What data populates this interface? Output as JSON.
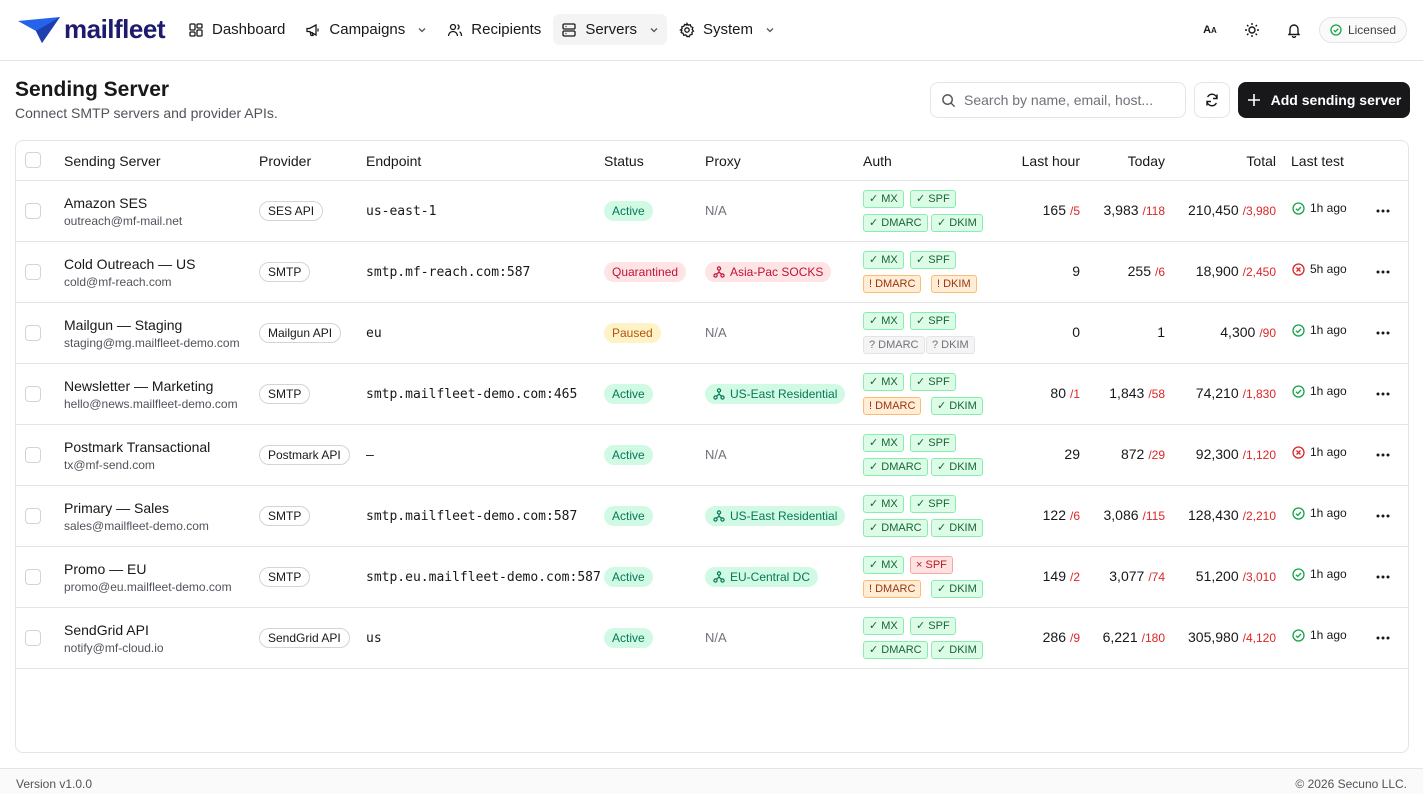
{
  "brand": {
    "name": "mailfleet"
  },
  "nav": {
    "items": [
      {
        "label": "Dashboard",
        "icon": "dashboard-icon",
        "dropdown": false,
        "active": false
      },
      {
        "label": "Campaigns",
        "icon": "megaphone-icon",
        "dropdown": true,
        "active": false
      },
      {
        "label": "Recipients",
        "icon": "users-icon",
        "dropdown": false,
        "active": false
      },
      {
        "label": "Servers",
        "icon": "server-icon",
        "dropdown": true,
        "active": true
      },
      {
        "label": "System",
        "icon": "gear-icon",
        "dropdown": true,
        "active": false
      }
    ],
    "license_label": "Licensed"
  },
  "header": {
    "title": "Sending Server",
    "subtitle": "Connect SMTP servers and provider APIs.",
    "search_placeholder": "Search by name, email, host...",
    "add_label": "Add sending server"
  },
  "table": {
    "columns": {
      "server": "Sending Server",
      "provider": "Provider",
      "endpoint": "Endpoint",
      "status": "Status",
      "proxy": "Proxy",
      "auth": "Auth",
      "last_hour": "Last hour",
      "today": "Today",
      "total": "Total",
      "last_test": "Last test"
    },
    "rows": [
      {
        "name": "Amazon SES",
        "email": "outreach@mf-mail.net",
        "provider": "SES API",
        "endpoint": "us-east-1",
        "status": "Active",
        "proxy": "N/A",
        "proxy_set": false,
        "auth": {
          "mx": "✓ MX",
          "mx_s": "ok",
          "spf": "✓ SPF",
          "spf_s": "ok",
          "dmarc": "✓ DMARC",
          "dmarc_s": "ok",
          "dkim": "✓ DKIM",
          "dkim_s": "ok"
        },
        "last_hour": "165",
        "last_hour_b": "/5",
        "today": "3,983",
        "today_b": "/118",
        "total": "210,450",
        "total_b": "/3,980",
        "last_test": "1h ago",
        "test_ok": true
      },
      {
        "name": "Cold Outreach — US",
        "email": "cold@mf-reach.com",
        "provider": "SMTP",
        "endpoint": "smtp.mf-reach.com:587",
        "status": "Quarantined",
        "proxy": "Asia-Pac SOCKS",
        "proxy_set": true,
        "proxy_tone": "red",
        "auth": {
          "mx": "✓ MX",
          "mx_s": "ok",
          "spf": "✓ SPF",
          "spf_s": "ok",
          "dmarc": "! DMARC",
          "dmarc_s": "warn",
          "dkim": "! DKIM",
          "dkim_s": "warn"
        },
        "last_hour": "9",
        "last_hour_b": "",
        "today": "255",
        "today_b": "/6",
        "total": "18,900",
        "total_b": "/2,450",
        "last_test": "5h ago",
        "test_ok": false
      },
      {
        "name": "Mailgun — Staging",
        "email": "staging@mg.mailfleet-demo.com",
        "provider": "Mailgun API",
        "endpoint": "eu",
        "status": "Paused",
        "proxy": "N/A",
        "proxy_set": false,
        "auth": {
          "mx": "✓ MX",
          "mx_s": "ok",
          "spf": "✓ SPF",
          "spf_s": "ok",
          "dmarc": "? DMARC",
          "dmarc_s": "unk",
          "dkim": "? DKIM",
          "dkim_s": "unk"
        },
        "last_hour": "0",
        "last_hour_b": "",
        "today": "1",
        "today_b": "",
        "total": "4,300",
        "total_b": "/90",
        "last_test": "1h ago",
        "test_ok": true
      },
      {
        "name": "Newsletter — Marketing",
        "email": "hello@news.mailfleet-demo.com",
        "provider": "SMTP",
        "endpoint": "smtp.mailfleet-demo.com:465",
        "status": "Active",
        "proxy": "US-East Residential",
        "proxy_set": true,
        "proxy_tone": "green",
        "auth": {
          "mx": "✓ MX",
          "mx_s": "ok",
          "spf": "✓ SPF",
          "spf_s": "ok",
          "dmarc": "! DMARC",
          "dmarc_s": "warn",
          "dkim": "✓ DKIM",
          "dkim_s": "ok"
        },
        "last_hour": "80",
        "last_hour_b": "/1",
        "today": "1,843",
        "today_b": "/58",
        "total": "74,210",
        "total_b": "/1,830",
        "last_test": "1h ago",
        "test_ok": true
      },
      {
        "name": "Postmark Transactional",
        "email": "tx@mf-send.com",
        "provider": "Postmark API",
        "endpoint": "—",
        "status": "Active",
        "proxy": "N/A",
        "proxy_set": false,
        "auth": {
          "mx": "✓ MX",
          "mx_s": "ok",
          "spf": "✓ SPF",
          "spf_s": "ok",
          "dmarc": "✓ DMARC",
          "dmarc_s": "ok",
          "dkim": "✓ DKIM",
          "dkim_s": "ok"
        },
        "last_hour": "29",
        "last_hour_b": "",
        "today": "872",
        "today_b": "/29",
        "total": "92,300",
        "total_b": "/1,120",
        "last_test": "1h ago",
        "test_ok": false
      },
      {
        "name": "Primary — Sales",
        "email": "sales@mailfleet-demo.com",
        "provider": "SMTP",
        "endpoint": "smtp.mailfleet-demo.com:587",
        "status": "Active",
        "proxy": "US-East Residential",
        "proxy_set": true,
        "proxy_tone": "green",
        "auth": {
          "mx": "✓ MX",
          "mx_s": "ok",
          "spf": "✓ SPF",
          "spf_s": "ok",
          "dmarc": "✓ DMARC",
          "dmarc_s": "ok",
          "dkim": "✓ DKIM",
          "dkim_s": "ok"
        },
        "last_hour": "122",
        "last_hour_b": "/6",
        "today": "3,086",
        "today_b": "/115",
        "total": "128,430",
        "total_b": "/2,210",
        "last_test": "1h ago",
        "test_ok": true
      },
      {
        "name": "Promo — EU",
        "email": "promo@eu.mailfleet-demo.com",
        "provider": "SMTP",
        "endpoint": "smtp.eu.mailfleet-demo.com:587",
        "status": "Active",
        "proxy": "EU-Central DC",
        "proxy_set": true,
        "proxy_tone": "green",
        "auth": {
          "mx": "✓ MX",
          "mx_s": "ok",
          "spf": "× SPF",
          "spf_s": "bad",
          "dmarc": "! DMARC",
          "dmarc_s": "warn",
          "dkim": "✓ DKIM",
          "dkim_s": "ok"
        },
        "last_hour": "149",
        "last_hour_b": "/2",
        "today": "3,077",
        "today_b": "/74",
        "total": "51,200",
        "total_b": "/3,010",
        "last_test": "1h ago",
        "test_ok": true
      },
      {
        "name": "SendGrid API",
        "email": "notify@mf-cloud.io",
        "provider": "SendGrid API",
        "endpoint": "us",
        "status": "Active",
        "proxy": "N/A",
        "proxy_set": false,
        "auth": {
          "mx": "✓ MX",
          "mx_s": "ok",
          "spf": "✓ SPF",
          "spf_s": "ok",
          "dmarc": "✓ DMARC",
          "dmarc_s": "ok",
          "dkim": "✓ DKIM",
          "dkim_s": "ok"
        },
        "last_hour": "286",
        "last_hour_b": "/9",
        "today": "6,221",
        "today_b": "/180",
        "total": "305,980",
        "total_b": "/4,120",
        "last_test": "1h ago",
        "test_ok": true
      }
    ]
  },
  "status_colors": {
    "Active": {
      "bg": "#d1fae5",
      "fg": "#047857"
    },
    "Quarantined": {
      "bg": "#ffe4e6",
      "fg": "#be123c"
    },
    "Paused": {
      "bg": "#fef3c7",
      "fg": "#b45309"
    }
  },
  "footer": {
    "version": "Version v1.0.0",
    "copyright": "© 2026 Secuno LLC."
  }
}
